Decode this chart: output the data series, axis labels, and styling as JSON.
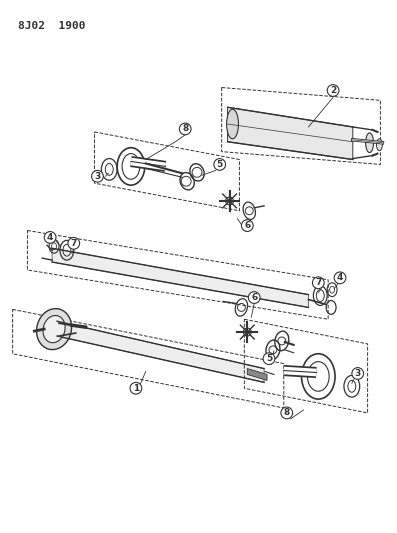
{
  "title": "8J02  1900",
  "bg_color": "#ffffff",
  "line_color": "#333333",
  "figsize": [
    3.97,
    5.33
  ],
  "dpi": 100
}
